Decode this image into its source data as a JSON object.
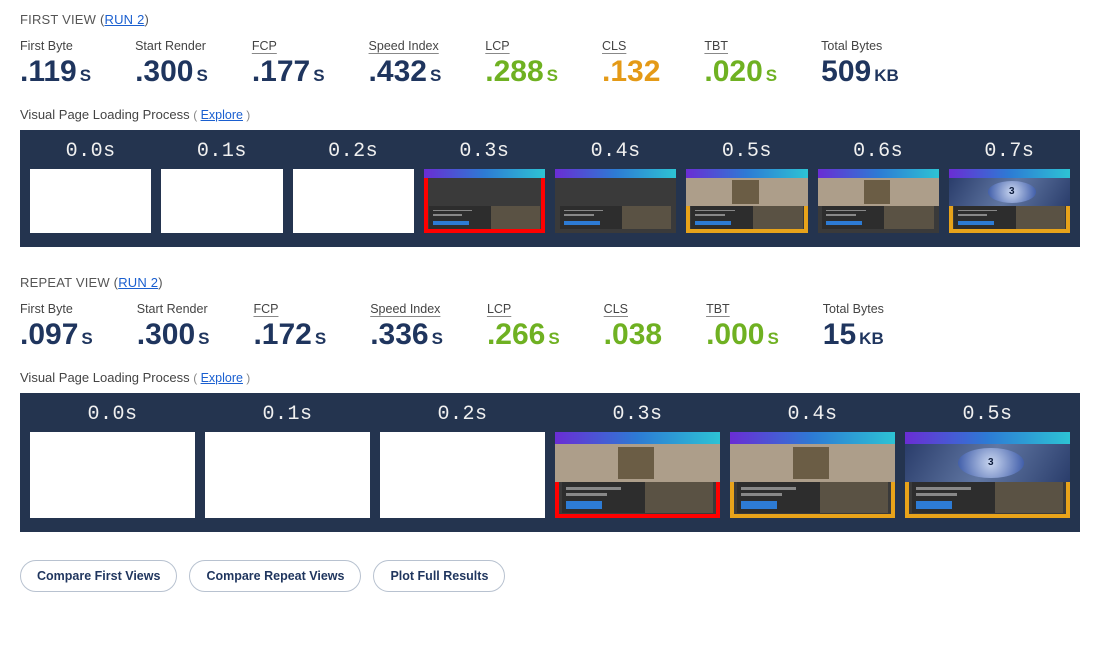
{
  "colors": {
    "navy": "#1f355e",
    "green": "#6fb122",
    "orange": "#e49a17",
    "link": "#1a5fd0",
    "filmstrip_bg": "#24344f",
    "border_red": "#ff0000",
    "border_amber": "#e8a31a"
  },
  "first_view": {
    "title_prefix": "FIRST VIEW (",
    "run_link": "RUN 2",
    "title_suffix": ")",
    "metrics": [
      {
        "label": "First Byte",
        "underlined": false,
        "value": ".119",
        "unit": "S",
        "color": "navy"
      },
      {
        "label": "Start Render",
        "underlined": false,
        "value": ".300",
        "unit": "S",
        "color": "navy"
      },
      {
        "label": "FCP",
        "underlined": true,
        "value": ".177",
        "unit": "S",
        "color": "navy"
      },
      {
        "label": "Speed Index",
        "underlined": true,
        "value": ".432",
        "unit": "S",
        "color": "navy"
      },
      {
        "label": "LCP",
        "underlined": true,
        "value": ".288",
        "unit": "S",
        "color": "green"
      },
      {
        "label": "CLS",
        "underlined": true,
        "value": ".132",
        "unit": "",
        "color": "orange"
      },
      {
        "label": "TBT",
        "underlined": true,
        "value": ".020",
        "unit": "S",
        "color": "green"
      },
      {
        "label": "Total Bytes",
        "underlined": false,
        "value": "509",
        "unit": "KB",
        "color": "navy"
      }
    ],
    "subhead": "Visual Page Loading Process",
    "explore_label": "Explore",
    "filmstrip": [
      {
        "time": "0.0s",
        "state": "blank",
        "border": "none"
      },
      {
        "time": "0.1s",
        "state": "blank",
        "border": "none"
      },
      {
        "time": "0.2s",
        "state": "blank",
        "border": "none"
      },
      {
        "time": "0.3s",
        "state": "dark_band",
        "border": "red"
      },
      {
        "time": "0.4s",
        "state": "dark_band",
        "border": "none"
      },
      {
        "time": "0.5s",
        "state": "hero",
        "border": "amber"
      },
      {
        "time": "0.6s",
        "state": "hero",
        "border": "none"
      },
      {
        "time": "0.7s",
        "state": "final",
        "border": "amber"
      }
    ]
  },
  "repeat_view": {
    "title_prefix": "REPEAT VIEW (",
    "run_link": "RUN 2",
    "title_suffix": ")",
    "metrics": [
      {
        "label": "First Byte",
        "underlined": false,
        "value": ".097",
        "unit": "S",
        "color": "navy"
      },
      {
        "label": "Start Render",
        "underlined": false,
        "value": ".300",
        "unit": "S",
        "color": "navy"
      },
      {
        "label": "FCP",
        "underlined": true,
        "value": ".172",
        "unit": "S",
        "color": "navy"
      },
      {
        "label": "Speed Index",
        "underlined": true,
        "value": ".336",
        "unit": "S",
        "color": "navy"
      },
      {
        "label": "LCP",
        "underlined": true,
        "value": ".266",
        "unit": "S",
        "color": "green"
      },
      {
        "label": "CLS",
        "underlined": true,
        "value": ".038",
        "unit": "",
        "color": "green"
      },
      {
        "label": "TBT",
        "underlined": true,
        "value": ".000",
        "unit": "S",
        "color": "green"
      },
      {
        "label": "Total Bytes",
        "underlined": false,
        "value": "15",
        "unit": "KB",
        "color": "navy"
      }
    ],
    "subhead": "Visual Page Loading Process",
    "explore_label": "Explore",
    "filmstrip": [
      {
        "time": "0.0s",
        "state": "blank",
        "border": "none"
      },
      {
        "time": "0.1s",
        "state": "blank",
        "border": "none"
      },
      {
        "time": "0.2s",
        "state": "blank",
        "border": "none"
      },
      {
        "time": "0.3s",
        "state": "hero",
        "border": "red"
      },
      {
        "time": "0.4s",
        "state": "hero",
        "border": "amber"
      },
      {
        "time": "0.5s",
        "state": "final",
        "border": "amber"
      }
    ]
  },
  "buttons": {
    "compare_first": "Compare First Views",
    "compare_repeat": "Compare Repeat Views",
    "plot_full": "Plot Full Results"
  }
}
